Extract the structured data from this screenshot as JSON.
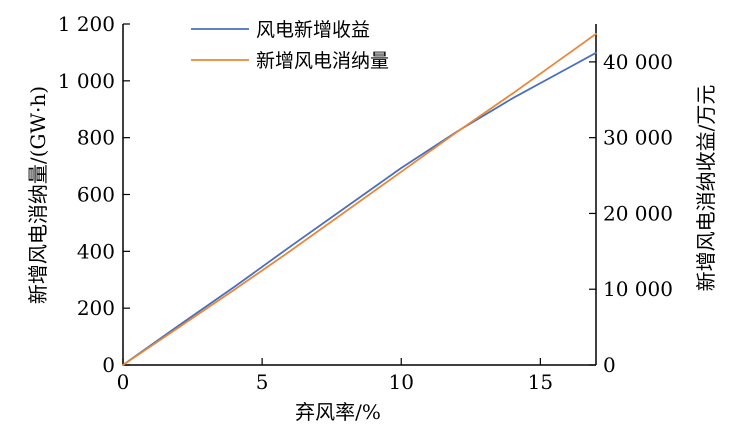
{
  "chart_data": {
    "type": "line",
    "xlabel": "弃风率/%",
    "ylabel_left": "新增风电消纳量/(GW·h)",
    "ylabel_right": "新增风电消纳收益/万元",
    "xlim": [
      0,
      17
    ],
    "ylim_left": [
      0,
      1200
    ],
    "ylim_right": [
      0,
      45000
    ],
    "x_ticks": [
      0,
      5,
      10,
      15
    ],
    "x_tick_labels": [
      "0",
      "5",
      "10",
      "15"
    ],
    "y_left_ticks": [
      0,
      200,
      400,
      600,
      800,
      1000,
      1200
    ],
    "y_left_tick_labels": [
      "0",
      "200",
      "400",
      "600",
      "800",
      "1 000",
      "1 200"
    ],
    "y_right_ticks": [
      0,
      10000,
      20000,
      30000,
      40000
    ],
    "y_right_tick_labels": [
      "0",
      "10 000",
      "20 000",
      "30 000",
      "40 000"
    ],
    "grid": false,
    "legend_position": "top-center",
    "series": [
      {
        "name": "风电新增收益",
        "axis": "right",
        "color": "#4a6fbf",
        "x": [
          0,
          2,
          4,
          6,
          8,
          10,
          12,
          14,
          16,
          17
        ],
        "y": [
          0,
          5200,
          10300,
          15600,
          20800,
          26000,
          30800,
          35200,
          39200,
          41200
        ]
      },
      {
        "name": "新增风电消纳量",
        "axis": "left",
        "color": "#e8883a",
        "x": [
          0,
          2,
          4,
          6,
          8,
          10,
          12,
          14,
          16,
          17
        ],
        "y": [
          0,
          132,
          265,
          400,
          540,
          680,
          820,
          955,
          1095,
          1165
        ]
      }
    ]
  }
}
